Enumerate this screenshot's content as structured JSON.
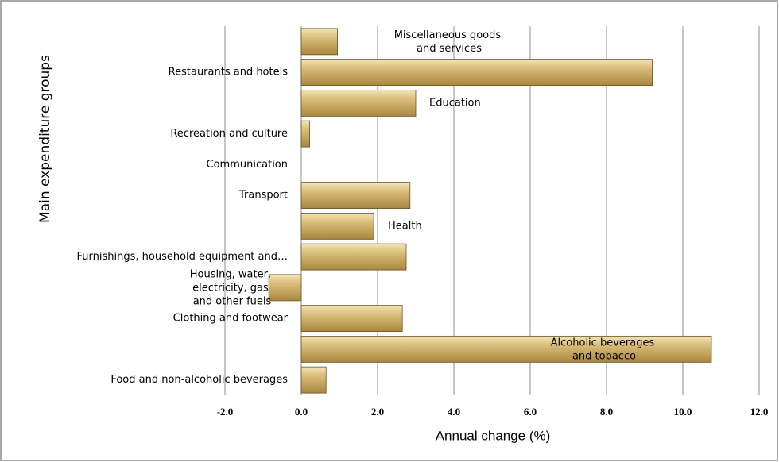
{
  "chart_data": {
    "type": "bar",
    "orientation": "horizontal",
    "y_axis_label": "Main expenditure groups",
    "x_axis_label": "Annual change (%)",
    "categories": [
      "Food and non-alcoholic beverages",
      "Alcoholic beverages and tobacco",
      "Clothing and footwear",
      "Housing, water, electricity, gas and other fuels",
      "Furnishings, household equipment and…",
      "Health",
      "Transport",
      "Communication",
      "Recreation and culture",
      "Education",
      "Restaurants and hotels",
      "Miscellaneous goods and services"
    ],
    "values": [
      0.65,
      10.75,
      2.65,
      -0.85,
      2.75,
      1.9,
      2.85,
      0,
      0.22,
      3.0,
      9.2,
      0.95
    ],
    "color": "#c9a95f",
    "xlim": [
      -2,
      12
    ],
    "xticks": [
      {
        "value": -2,
        "label": "-2.0"
      },
      {
        "value": 0,
        "label": "0.0"
      },
      {
        "value": 2,
        "label": "2.0"
      },
      {
        "value": 4,
        "label": "4.0"
      },
      {
        "value": 6,
        "label": "6.0"
      },
      {
        "value": 8,
        "label": "8.0"
      },
      {
        "value": 10,
        "label": "10.0"
      },
      {
        "value": 12,
        "label": "12.0"
      }
    ],
    "grid": true
  }
}
